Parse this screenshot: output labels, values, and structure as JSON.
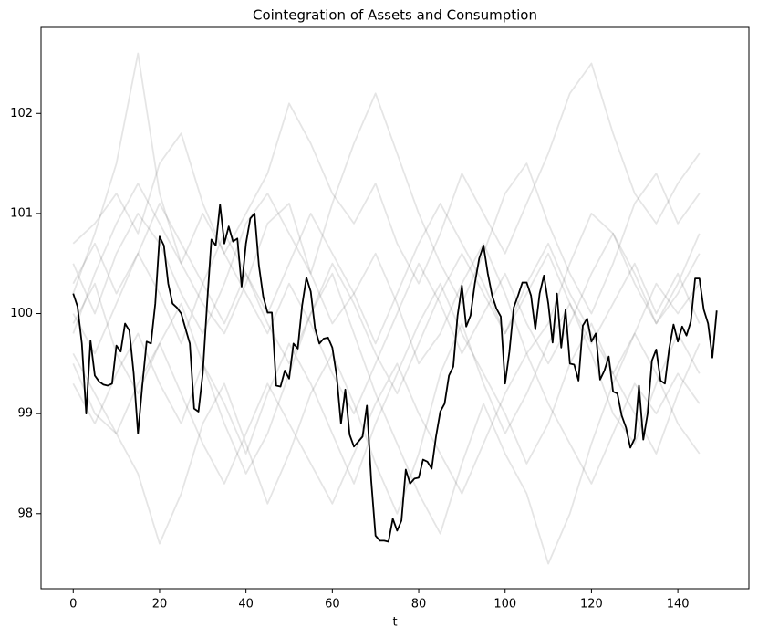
{
  "chart_data": {
    "type": "line",
    "title": "Cointegration of Assets and Consumption",
    "xlabel": "t",
    "xlim": [
      -7.45,
      156.45
    ],
    "ylim": [
      97.25,
      102.86
    ],
    "xticks": [
      0,
      20,
      40,
      60,
      80,
      100,
      120,
      140
    ],
    "yticks": [
      98,
      99,
      100,
      101,
      102
    ],
    "series": [
      {
        "color": "black",
        "alpha": 0.1,
        "x": [
          0,
          5,
          10,
          15,
          20,
          25,
          30,
          35,
          40,
          45,
          50,
          55,
          60,
          65,
          70,
          75,
          80,
          85,
          90,
          95,
          100,
          105,
          110,
          115,
          120,
          125,
          130,
          135,
          140,
          145
        ],
        "values": [
          100.2,
          100.8,
          101.5,
          102.6,
          101.2,
          100.5,
          100.1,
          99.8,
          100.3,
          100.9,
          101.1,
          100.4,
          99.9,
          100.2,
          100.6,
          100.1,
          99.5,
          99.8,
          100.3,
          100.7,
          100.2,
          99.6,
          99.9,
          100.5,
          101.0,
          100.8,
          100.3,
          99.9,
          100.2,
          100.6
        ]
      },
      {
        "color": "black",
        "alpha": 0.1,
        "x": [
          0,
          5,
          10,
          15,
          20,
          25,
          30,
          35,
          40,
          45,
          50,
          55,
          60,
          65,
          70,
          75,
          80,
          85,
          90,
          95,
          100,
          105,
          110,
          115,
          120,
          125,
          130,
          135,
          140,
          145
        ],
        "values": [
          99.5,
          99.0,
          98.8,
          98.4,
          97.7,
          98.2,
          98.9,
          99.3,
          98.7,
          98.1,
          98.6,
          99.2,
          99.6,
          99.1,
          98.5,
          98.0,
          98.6,
          99.4,
          99.9,
          99.3,
          98.8,
          99.2,
          99.7,
          100.1,
          99.6,
          99.0,
          98.7,
          99.3,
          99.8,
          99.4
        ]
      },
      {
        "color": "black",
        "alpha": 0.1,
        "x": [
          0,
          5,
          10,
          15,
          20,
          25,
          30,
          35,
          40,
          45,
          50,
          55,
          60,
          65,
          70,
          75,
          80,
          85,
          90,
          95,
          100,
          105,
          110,
          115,
          120,
          125,
          130,
          135,
          140,
          145
        ],
        "values": [
          100.7,
          100.9,
          101.2,
          100.8,
          101.5,
          101.8,
          101.1,
          100.6,
          101.0,
          101.4,
          102.1,
          101.7,
          101.2,
          100.9,
          101.3,
          100.7,
          100.3,
          100.8,
          101.4,
          101.0,
          100.6,
          101.1,
          101.6,
          102.2,
          102.5,
          101.8,
          101.2,
          100.9,
          101.3,
          101.6
        ]
      },
      {
        "color": "black",
        "alpha": 0.1,
        "x": [
          0,
          5,
          10,
          15,
          20,
          25,
          30,
          35,
          40,
          45,
          50,
          55,
          60,
          65,
          70,
          75,
          80,
          85,
          90,
          95,
          100,
          105,
          110,
          115,
          120,
          125,
          130,
          135,
          140,
          145
        ],
        "values": [
          99.9,
          100.3,
          99.6,
          99.2,
          99.7,
          100.1,
          99.5,
          98.9,
          98.4,
          98.8,
          99.4,
          100.0,
          100.4,
          99.8,
          99.2,
          98.7,
          98.2,
          97.8,
          98.5,
          99.1,
          98.6,
          98.2,
          97.5,
          98.0,
          98.7,
          99.3,
          99.8,
          99.4,
          98.9,
          98.6
        ]
      },
      {
        "color": "black",
        "alpha": 0.1,
        "x": [
          0,
          5,
          10,
          15,
          20,
          25,
          30,
          35,
          40,
          45,
          50,
          55,
          60,
          65,
          70,
          75,
          80,
          85,
          90,
          95,
          100,
          105,
          110,
          115,
          120,
          125,
          130,
          135,
          140,
          145
        ],
        "values": [
          100.5,
          100.0,
          100.6,
          101.0,
          100.7,
          100.2,
          99.8,
          100.3,
          100.9,
          101.2,
          100.8,
          100.4,
          101.1,
          101.7,
          102.2,
          101.6,
          101.0,
          100.5,
          100.1,
          100.6,
          101.2,
          101.5,
          100.9,
          100.4,
          100.0,
          100.5,
          101.1,
          101.4,
          100.9,
          101.2
        ]
      },
      {
        "color": "black",
        "alpha": 0.1,
        "x": [
          0,
          5,
          10,
          15,
          20,
          25,
          30,
          35,
          40,
          45,
          50,
          55,
          60,
          65,
          70,
          75,
          80,
          85,
          90,
          95,
          100,
          105,
          110,
          115,
          120,
          125,
          130,
          135,
          140,
          145
        ],
        "values": [
          99.3,
          98.9,
          99.4,
          99.8,
          99.3,
          98.9,
          99.5,
          99.1,
          98.6,
          99.2,
          99.7,
          99.3,
          98.8,
          98.3,
          98.9,
          99.4,
          99.9,
          100.3,
          99.8,
          99.4,
          99.0,
          98.5,
          98.9,
          99.5,
          99.9,
          99.4,
          99.0,
          98.6,
          99.2,
          99.7
        ]
      },
      {
        "color": "black",
        "alpha": 0.1,
        "x": [
          0,
          5,
          10,
          15,
          20,
          25,
          30,
          35,
          40,
          45,
          50,
          55,
          60,
          65,
          70,
          75,
          80,
          85,
          90,
          95,
          100,
          105,
          110,
          115,
          120,
          125,
          130,
          135,
          140,
          145
        ],
        "values": [
          100.0,
          99.6,
          100.1,
          100.6,
          100.2,
          99.7,
          100.3,
          100.8,
          100.4,
          99.9,
          99.5,
          100.0,
          100.5,
          100.1,
          99.6,
          99.2,
          99.7,
          100.2,
          100.6,
          100.2,
          99.8,
          100.3,
          100.7,
          100.2,
          99.8,
          99.4,
          99.8,
          100.3,
          100.0,
          100.3
        ]
      },
      {
        "color": "black",
        "alpha": 0.1,
        "x": [
          0,
          5,
          10,
          15,
          20,
          25,
          30,
          35,
          40,
          45,
          50,
          55,
          60,
          65,
          70,
          75,
          80,
          85,
          90,
          95,
          100,
          105,
          110,
          115,
          120,
          125,
          130,
          135,
          140,
          145
        ],
        "values": [
          99.8,
          100.4,
          100.9,
          101.3,
          100.9,
          100.5,
          101.0,
          100.6,
          100.2,
          99.8,
          100.3,
          99.9,
          99.4,
          99.0,
          99.5,
          100.0,
          100.5,
          100.1,
          99.6,
          100.0,
          100.4,
          99.9,
          99.5,
          99.9,
          100.4,
          100.8,
          100.4,
          99.9,
          100.3,
          100.8
        ]
      },
      {
        "color": "black",
        "alpha": 0.1,
        "x": [
          0,
          5,
          10,
          15,
          20,
          25,
          30,
          35,
          40,
          45,
          50,
          55,
          60,
          65,
          70,
          75,
          80,
          85,
          90,
          95,
          100,
          105,
          110,
          115,
          120,
          125,
          130,
          135,
          140,
          145
        ],
        "values": [
          99.6,
          99.2,
          98.8,
          99.3,
          99.7,
          99.2,
          98.7,
          98.3,
          98.8,
          99.3,
          98.9,
          98.5,
          98.1,
          98.6,
          99.1,
          99.5,
          99.0,
          98.6,
          98.2,
          98.7,
          99.2,
          99.6,
          99.1,
          98.7,
          98.3,
          98.8,
          99.3,
          99.0,
          99.4,
          99.1
        ]
      },
      {
        "color": "black",
        "alpha": 0.1,
        "x": [
          0,
          5,
          10,
          15,
          20,
          25,
          30,
          35,
          40,
          45,
          50,
          55,
          60,
          65,
          70,
          75,
          80,
          85,
          90,
          95,
          100,
          105,
          110,
          115,
          120,
          125,
          130,
          135,
          140,
          145
        ],
        "values": [
          100.3,
          100.7,
          100.2,
          100.6,
          101.1,
          100.7,
          100.3,
          99.9,
          100.4,
          100.0,
          100.5,
          101.0,
          100.6,
          100.2,
          99.7,
          100.2,
          100.7,
          101.1,
          100.7,
          100.3,
          99.8,
          100.2,
          100.6,
          100.1,
          99.7,
          100.1,
          100.5,
          100.0,
          100.4,
          99.9
        ]
      },
      {
        "color": "black",
        "alpha": 1,
        "x": [
          0,
          1,
          2,
          3,
          4,
          5,
          6,
          7,
          8,
          9,
          10,
          11,
          12,
          13,
          14,
          15,
          16,
          17,
          18,
          19,
          20,
          21,
          22,
          23,
          24,
          25,
          26,
          27,
          28,
          29,
          30,
          31,
          32,
          33,
          34,
          35,
          36,
          37,
          38,
          39,
          40,
          41,
          42,
          43,
          44,
          45,
          46,
          47,
          48,
          49,
          50,
          51,
          52,
          53,
          54,
          55,
          56,
          57,
          58,
          59,
          60,
          61,
          62,
          63,
          64,
          65,
          66,
          67,
          68,
          69,
          70,
          71,
          72,
          73,
          74,
          75,
          76,
          77,
          78,
          79,
          80,
          81,
          82,
          83,
          84,
          85,
          86,
          87,
          88,
          89,
          90,
          91,
          92,
          93,
          94,
          95,
          96,
          97,
          98,
          99,
          100,
          101,
          102,
          103,
          104,
          105,
          106,
          107,
          108,
          109,
          110,
          111,
          112,
          113,
          114,
          115,
          116,
          117,
          118,
          119,
          120,
          121,
          122,
          123,
          124,
          125,
          126,
          127,
          128,
          129,
          130,
          131,
          132,
          133,
          134,
          135,
          136,
          137,
          138,
          139,
          140,
          141,
          142,
          143,
          144,
          145,
          146,
          147,
          148,
          149
        ],
        "values": [
          100.2,
          100.07,
          99.7,
          99.0,
          99.73,
          99.38,
          99.32,
          99.29,
          99.28,
          99.3,
          99.68,
          99.62,
          99.9,
          99.83,
          99.4,
          98.8,
          99.28,
          99.72,
          99.7,
          100.1,
          100.77,
          100.68,
          100.3,
          100.1,
          100.06,
          100.0,
          99.85,
          99.7,
          99.05,
          99.02,
          99.4,
          100.1,
          100.74,
          100.68,
          101.09,
          100.7,
          100.87,
          100.72,
          100.75,
          100.27,
          100.7,
          100.95,
          101.0,
          100.48,
          100.17,
          100.01,
          100.01,
          99.28,
          99.27,
          99.43,
          99.35,
          99.7,
          99.65,
          100.08,
          100.36,
          100.22,
          99.85,
          99.7,
          99.75,
          99.76,
          99.66,
          99.38,
          98.9,
          99.24,
          98.79,
          98.67,
          98.72,
          98.77,
          99.08,
          98.33,
          97.78,
          97.73,
          97.73,
          97.72,
          97.95,
          97.83,
          97.93,
          98.44,
          98.3,
          98.35,
          98.36,
          98.54,
          98.52,
          98.45,
          98.77,
          99.02,
          99.1,
          99.38,
          99.47,
          99.98,
          100.28,
          99.87,
          99.98,
          100.3,
          100.55,
          100.68,
          100.4,
          100.18,
          100.05,
          99.97,
          99.3,
          99.62,
          100.06,
          100.18,
          100.31,
          100.31,
          100.18,
          99.84,
          100.2,
          100.38,
          100.1,
          99.71,
          100.2,
          99.66,
          100.04,
          99.5,
          99.49,
          99.33,
          99.88,
          99.95,
          99.72,
          99.8,
          99.34,
          99.43,
          99.57,
          99.22,
          99.2,
          98.98,
          98.86,
          98.66,
          98.75,
          99.28,
          98.74,
          99.0,
          99.53,
          99.64,
          99.33,
          99.3,
          99.65,
          99.89,
          99.72,
          99.87,
          99.78,
          99.92,
          100.35,
          100.35,
          100.04,
          99.9,
          99.56,
          100.03
        ]
      }
    ]
  }
}
